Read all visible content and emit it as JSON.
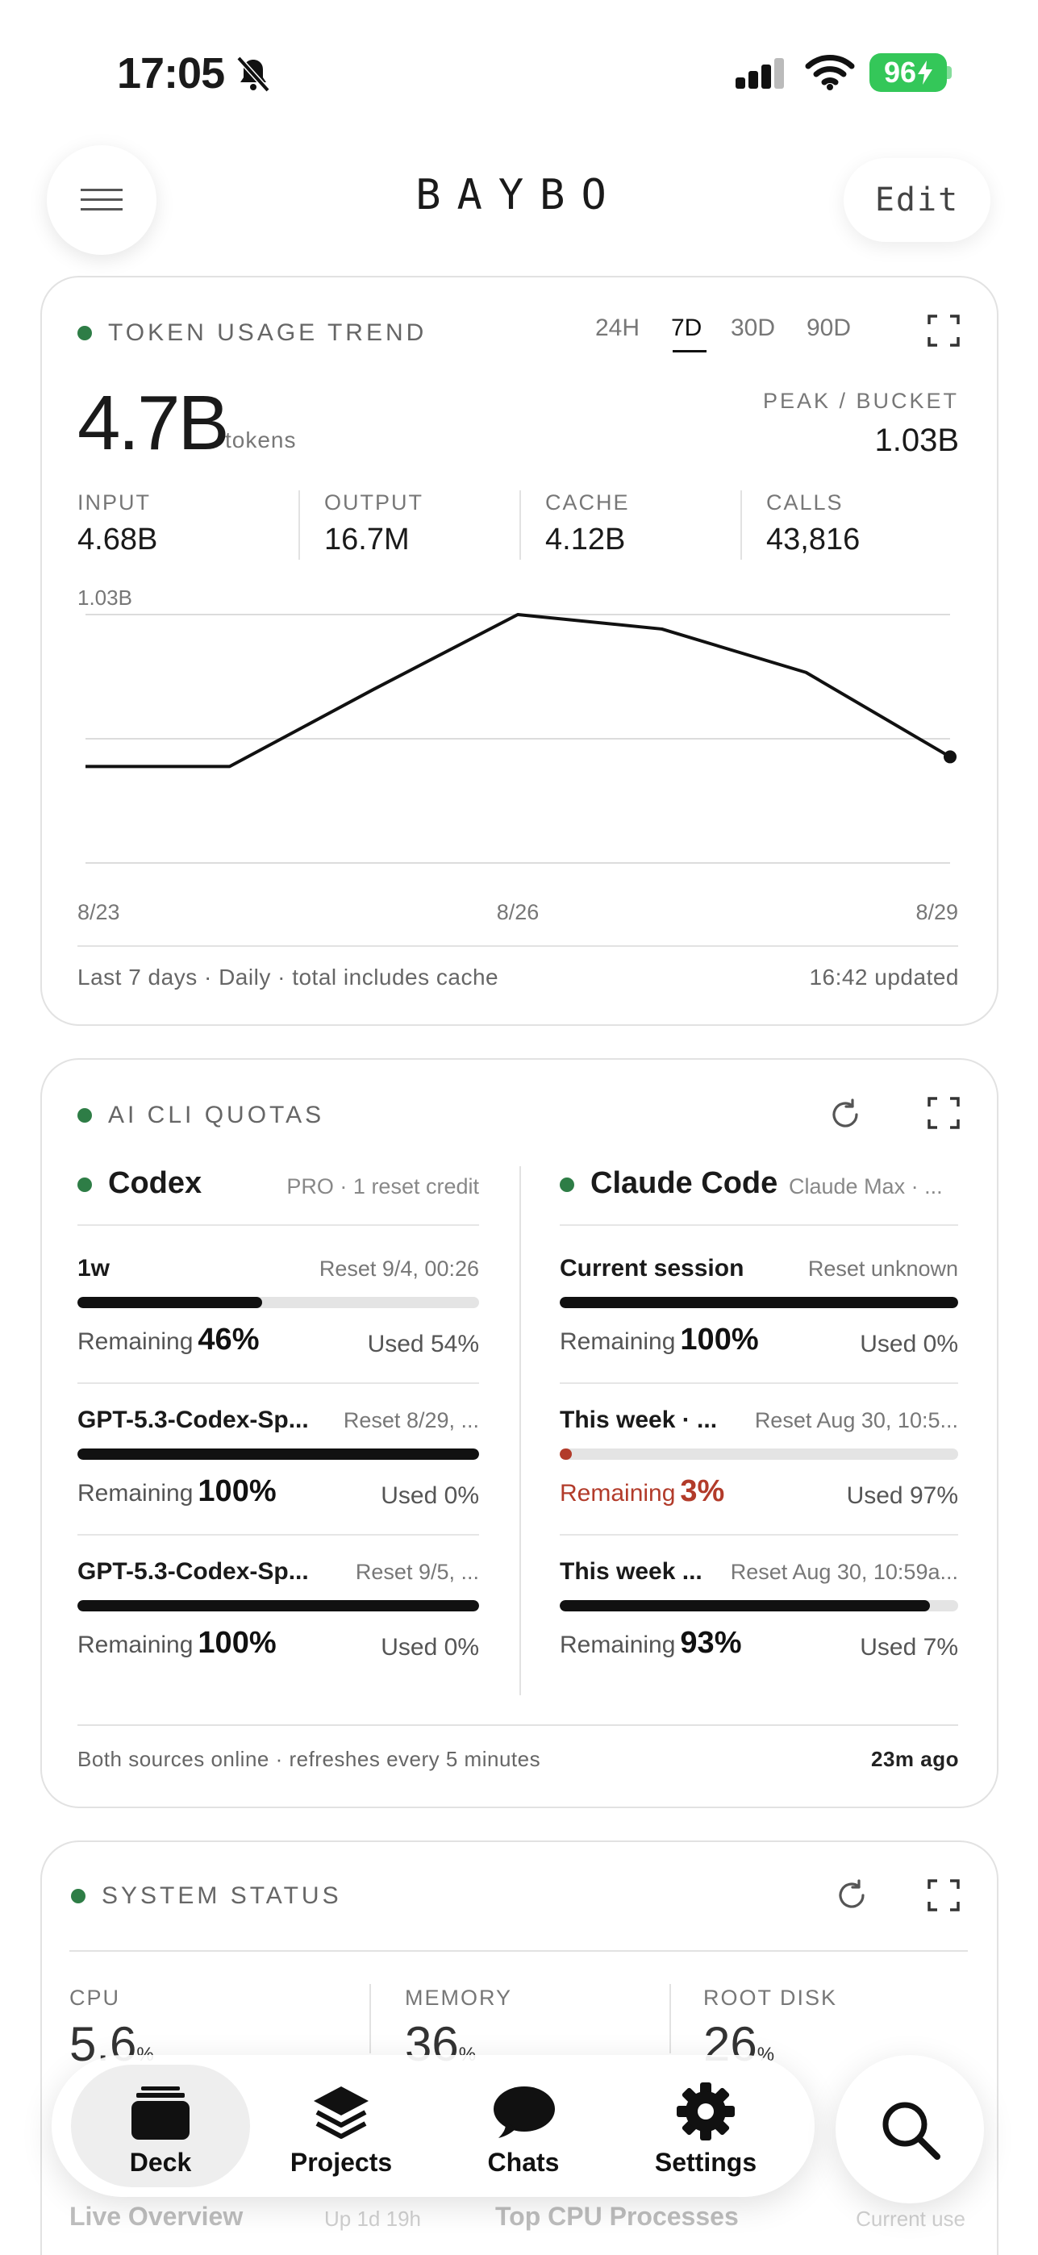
{
  "status_bar": {
    "time": "17:05",
    "battery": "96"
  },
  "header": {
    "brand": "BAYBO",
    "edit_label": "Edit"
  },
  "token_usage": {
    "title": "TOKEN USAGE TREND",
    "ranges": [
      "24H",
      "7D",
      "30D",
      "90D"
    ],
    "active_range": "7D",
    "total": "4.7B",
    "total_unit": "tokens",
    "peak_label": "PEAK / BUCKET",
    "peak_value": "1.03B",
    "stats": [
      {
        "label": "INPUT",
        "value": "4.68B"
      },
      {
        "label": "OUTPUT",
        "value": "16.7M"
      },
      {
        "label": "CACHE",
        "value": "4.12B"
      },
      {
        "label": "CALLS",
        "value": "43,816"
      }
    ],
    "footer_left": "Last 7 days · Daily · total includes cache",
    "footer_right": "16:42 updated"
  },
  "chart_data": {
    "type": "line",
    "title": "",
    "x": [
      "8/23",
      "8/24",
      "8/25",
      "8/26",
      "8/27",
      "8/28",
      "8/29"
    ],
    "series": [
      {
        "values": [
          0.4,
          0.4,
          0.72,
          1.03,
          0.97,
          0.79,
          0.44
        ]
      }
    ],
    "ylim": [
      0,
      1.03
    ],
    "y_tick_label": "1.03B",
    "x_tick_labels": [
      "8/23",
      "8/26",
      "8/29"
    ],
    "grid": true,
    "xlabel": "",
    "ylabel": ""
  },
  "quotas": {
    "title": "AI CLI QUOTAS",
    "providers": [
      {
        "name": "Codex",
        "meta": "PRO · 1 reset credit",
        "items": [
          {
            "label": "1w",
            "reset": "Reset 9/4, 00:26",
            "remaining_label": "Remaining",
            "remaining": "46%",
            "used": "Used 54%",
            "fill": 0.46,
            "warn": false
          },
          {
            "label": "GPT-5.3-Codex-Sp...",
            "reset": "Reset 8/29, ...",
            "remaining_label": "Remaining",
            "remaining": "100%",
            "used": "Used 0%",
            "fill": 1.0,
            "warn": false
          },
          {
            "label": "GPT-5.3-Codex-Sp...",
            "reset": "Reset 9/5, ...",
            "remaining_label": "Remaining",
            "remaining": "100%",
            "used": "Used 0%",
            "fill": 1.0,
            "warn": false
          }
        ]
      },
      {
        "name": "Claude Code",
        "meta": "Claude Max · ...",
        "items": [
          {
            "label": "Current session",
            "reset": "Reset unknown",
            "remaining_label": "Remaining",
            "remaining": "100%",
            "used": "Used 0%",
            "fill": 1.0,
            "warn": false
          },
          {
            "label": "This week · ...",
            "reset": "Reset Aug 30, 10:5...",
            "remaining_label": "Remaining",
            "remaining": "3%",
            "used": "Used 97%",
            "fill": 0.03,
            "warn": true
          },
          {
            "label": "This week ...",
            "reset": "Reset Aug 30, 10:59a...",
            "remaining_label": "Remaining",
            "remaining": "93%",
            "used": "Used 7%",
            "fill": 0.93,
            "warn": false
          }
        ]
      }
    ],
    "footer_left": "Both sources online · refreshes every 5 minutes",
    "footer_right": "23m ago"
  },
  "system_status": {
    "title": "SYSTEM STATUS",
    "metrics": [
      {
        "label": "CPU",
        "value": "5.6",
        "unit": "%"
      },
      {
        "label": "MEMORY",
        "value": "36",
        "unit": "%"
      },
      {
        "label": "ROOT DISK",
        "value": "26",
        "unit": "%"
      }
    ],
    "live_overview": "Live Overview",
    "uptime": "Up 1d 19h",
    "top_cpu": "Top CPU Processes",
    "current_use": "Current use"
  },
  "tabbar": {
    "tabs": [
      {
        "label": "Deck",
        "icon": "deck-icon",
        "active": true
      },
      {
        "label": "Projects",
        "icon": "stack-icon",
        "active": false
      },
      {
        "label": "Chats",
        "icon": "chat-bubble-icon",
        "active": false
      },
      {
        "label": "Settings",
        "icon": "gear-icon",
        "active": false
      }
    ]
  }
}
